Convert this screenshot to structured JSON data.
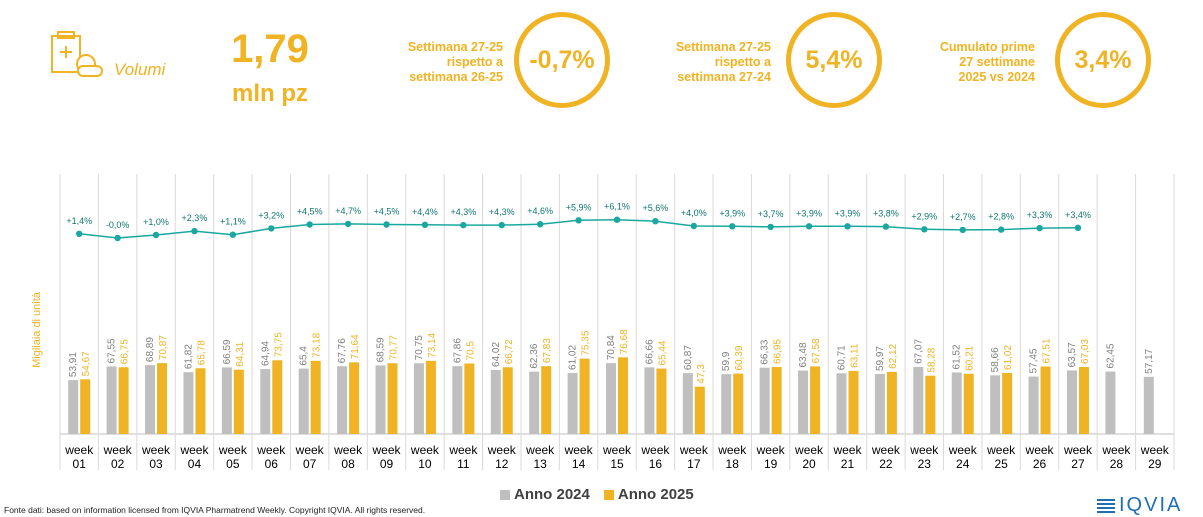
{
  "header": {
    "section_label": "Volumi",
    "big_value": "1,79",
    "big_unit": "mln pz",
    "kpis": [
      {
        "text": "Settimana 27-25\nrispetto a\nsettimana 26-25",
        "value": "-0,7%"
      },
      {
        "text": "Settimana 27-25\nrispetto a\nsettimana 27-24",
        "value": "5,4%"
      },
      {
        "text": "Cumulato prime\n27 settimane\n2025 vs 2024",
        "value": "3,4%"
      }
    ]
  },
  "colors": {
    "accent": "#f0b323",
    "series_2024": "#bfbfbf",
    "series_2025": "#f0b323",
    "line": "#1aa7a0"
  },
  "chart_data": {
    "type": "bar",
    "ylabel": "Migliaia di unità",
    "categories": [
      "week 01",
      "week 02",
      "week 03",
      "week 04",
      "week 05",
      "week 06",
      "week 07",
      "week 08",
      "week 09",
      "week 10",
      "week 11",
      "week 12",
      "week 13",
      "week 14",
      "week 15",
      "week 16",
      "week 17",
      "week 18",
      "week 19",
      "week 20",
      "week 21",
      "week 22",
      "week 23",
      "week 24",
      "week 25",
      "week 26",
      "week 27",
      "week 28",
      "week 29"
    ],
    "series": [
      {
        "name": "Anno 2024",
        "values": [
          53.91,
          67.55,
          68.89,
          61.82,
          66.59,
          64.94,
          65.4,
          67.76,
          68.59,
          70.75,
          67.86,
          64.02,
          62.36,
          61.02,
          70.84,
          66.66,
          60.87,
          59.9,
          66.33,
          63.48,
          60.71,
          59.97,
          67.07,
          61.52,
          58.66,
          57.45,
          63.57,
          62.45,
          57.17
        ],
        "labels": [
          "53,91",
          "67,55",
          "68,89",
          "61,82",
          "66,59",
          "64,94",
          "65,4",
          "67,76",
          "68,59",
          "70,75",
          "67,86",
          "64,02",
          "62,36",
          "61,02",
          "70,84",
          "66,66",
          "60,87",
          "59,9",
          "66,33",
          "63,48",
          "60,71",
          "59,97",
          "67,07",
          "61,52",
          "58,66",
          "57,45",
          "63,57",
          "62,45",
          "57,17"
        ]
      },
      {
        "name": "Anno 2025",
        "values": [
          54.67,
          66.75,
          70.87,
          65.78,
          64.31,
          73.75,
          73.18,
          71.64,
          70.77,
          73.14,
          70.5,
          66.72,
          67.83,
          75.35,
          76.68,
          65.44,
          47.3,
          60.39,
          66.95,
          67.58,
          63.11,
          62.12,
          58.28,
          60.21,
          61.02,
          67.51,
          67.03,
          null,
          null
        ],
        "labels": [
          "54,67",
          "66,75",
          "70,87",
          "65,78",
          "64,31",
          "73,75",
          "73,18",
          "71,64",
          "70,77",
          "73,14",
          "70,5",
          "66,72",
          "67,83",
          "75,35",
          "76,68",
          "65,44",
          "47,3",
          "60,39",
          "66,95",
          "67,58",
          "63,11",
          "62,12",
          "58,28",
          "60,21",
          "61,02",
          "67,51",
          "67,03",
          "",
          ""
        ]
      }
    ],
    "growth_line": {
      "values": [
        1.4,
        0.0,
        1.0,
        2.3,
        1.1,
        3.2,
        4.5,
        4.7,
        4.5,
        4.4,
        4.3,
        4.3,
        4.6,
        5.9,
        6.1,
        5.6,
        4.0,
        3.9,
        3.7,
        3.9,
        3.9,
        3.8,
        2.9,
        2.7,
        2.8,
        3.3,
        3.4
      ],
      "labels": [
        "+1,4%",
        "-0,0%",
        "+1,0%",
        "+2,3%",
        "+1,1%",
        "+3,2%",
        "+4,5%",
        "+4,7%",
        "+4,5%",
        "+4,4%",
        "+4,3%",
        "+4,3%",
        "+4,6%",
        "+5,9%",
        "+6,1%",
        "+5,6%",
        "+4,0%",
        "+3,9%",
        "+3,7%",
        "+3,9%",
        "+3,9%",
        "+3,8%",
        "+2,9%",
        "+2,7%",
        "+2,8%",
        "+3,3%",
        "+3,4%"
      ]
    },
    "ylim": [
      0,
      110
    ]
  },
  "footer": {
    "source": "Fonte dati: based on information licensed from IQVIA Pharmatrend Weekly. Copyright IQVIA. All rights reserved.",
    "logo_text": "IQVIA"
  }
}
